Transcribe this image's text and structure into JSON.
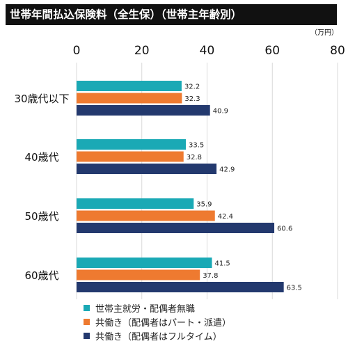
{
  "chart_data": {
    "type": "bar",
    "orientation": "horizontal",
    "title": "世帯年間払込保険料（全生保）（世帯主年齢別）",
    "unit": "（万円）",
    "xlim": [
      0,
      80
    ],
    "ticks": [
      "0",
      "20",
      "40",
      "60",
      "80"
    ],
    "tick_values": [
      0,
      20,
      40,
      60,
      80
    ],
    "grid": true,
    "legend_position": "bottom",
    "categories": [
      "30歳代以下",
      "40歳代",
      "50歳代",
      "60歳代"
    ],
    "series": [
      {
        "name": "世帯主就労・配偶者無職",
        "color": "#1AA9B5",
        "values": [
          32.2,
          33.5,
          35.9,
          41.5
        ],
        "labels": [
          "32.2",
          "33.5",
          "35.9",
          "41.5"
        ]
      },
      {
        "name": "共働き（配偶者はパート・派遣）",
        "color": "#EE7A30",
        "values": [
          32.3,
          32.8,
          42.4,
          37.8
        ],
        "labels": [
          "32.3",
          "32.8",
          "42.4",
          "37.8"
        ]
      },
      {
        "name": "共働き（配偶者はフルタイム）",
        "color": "#23396E",
        "values": [
          40.9,
          42.9,
          60.6,
          63.5
        ],
        "labels": [
          "40.9",
          "42.9",
          "60.6",
          "63.5"
        ]
      }
    ]
  }
}
